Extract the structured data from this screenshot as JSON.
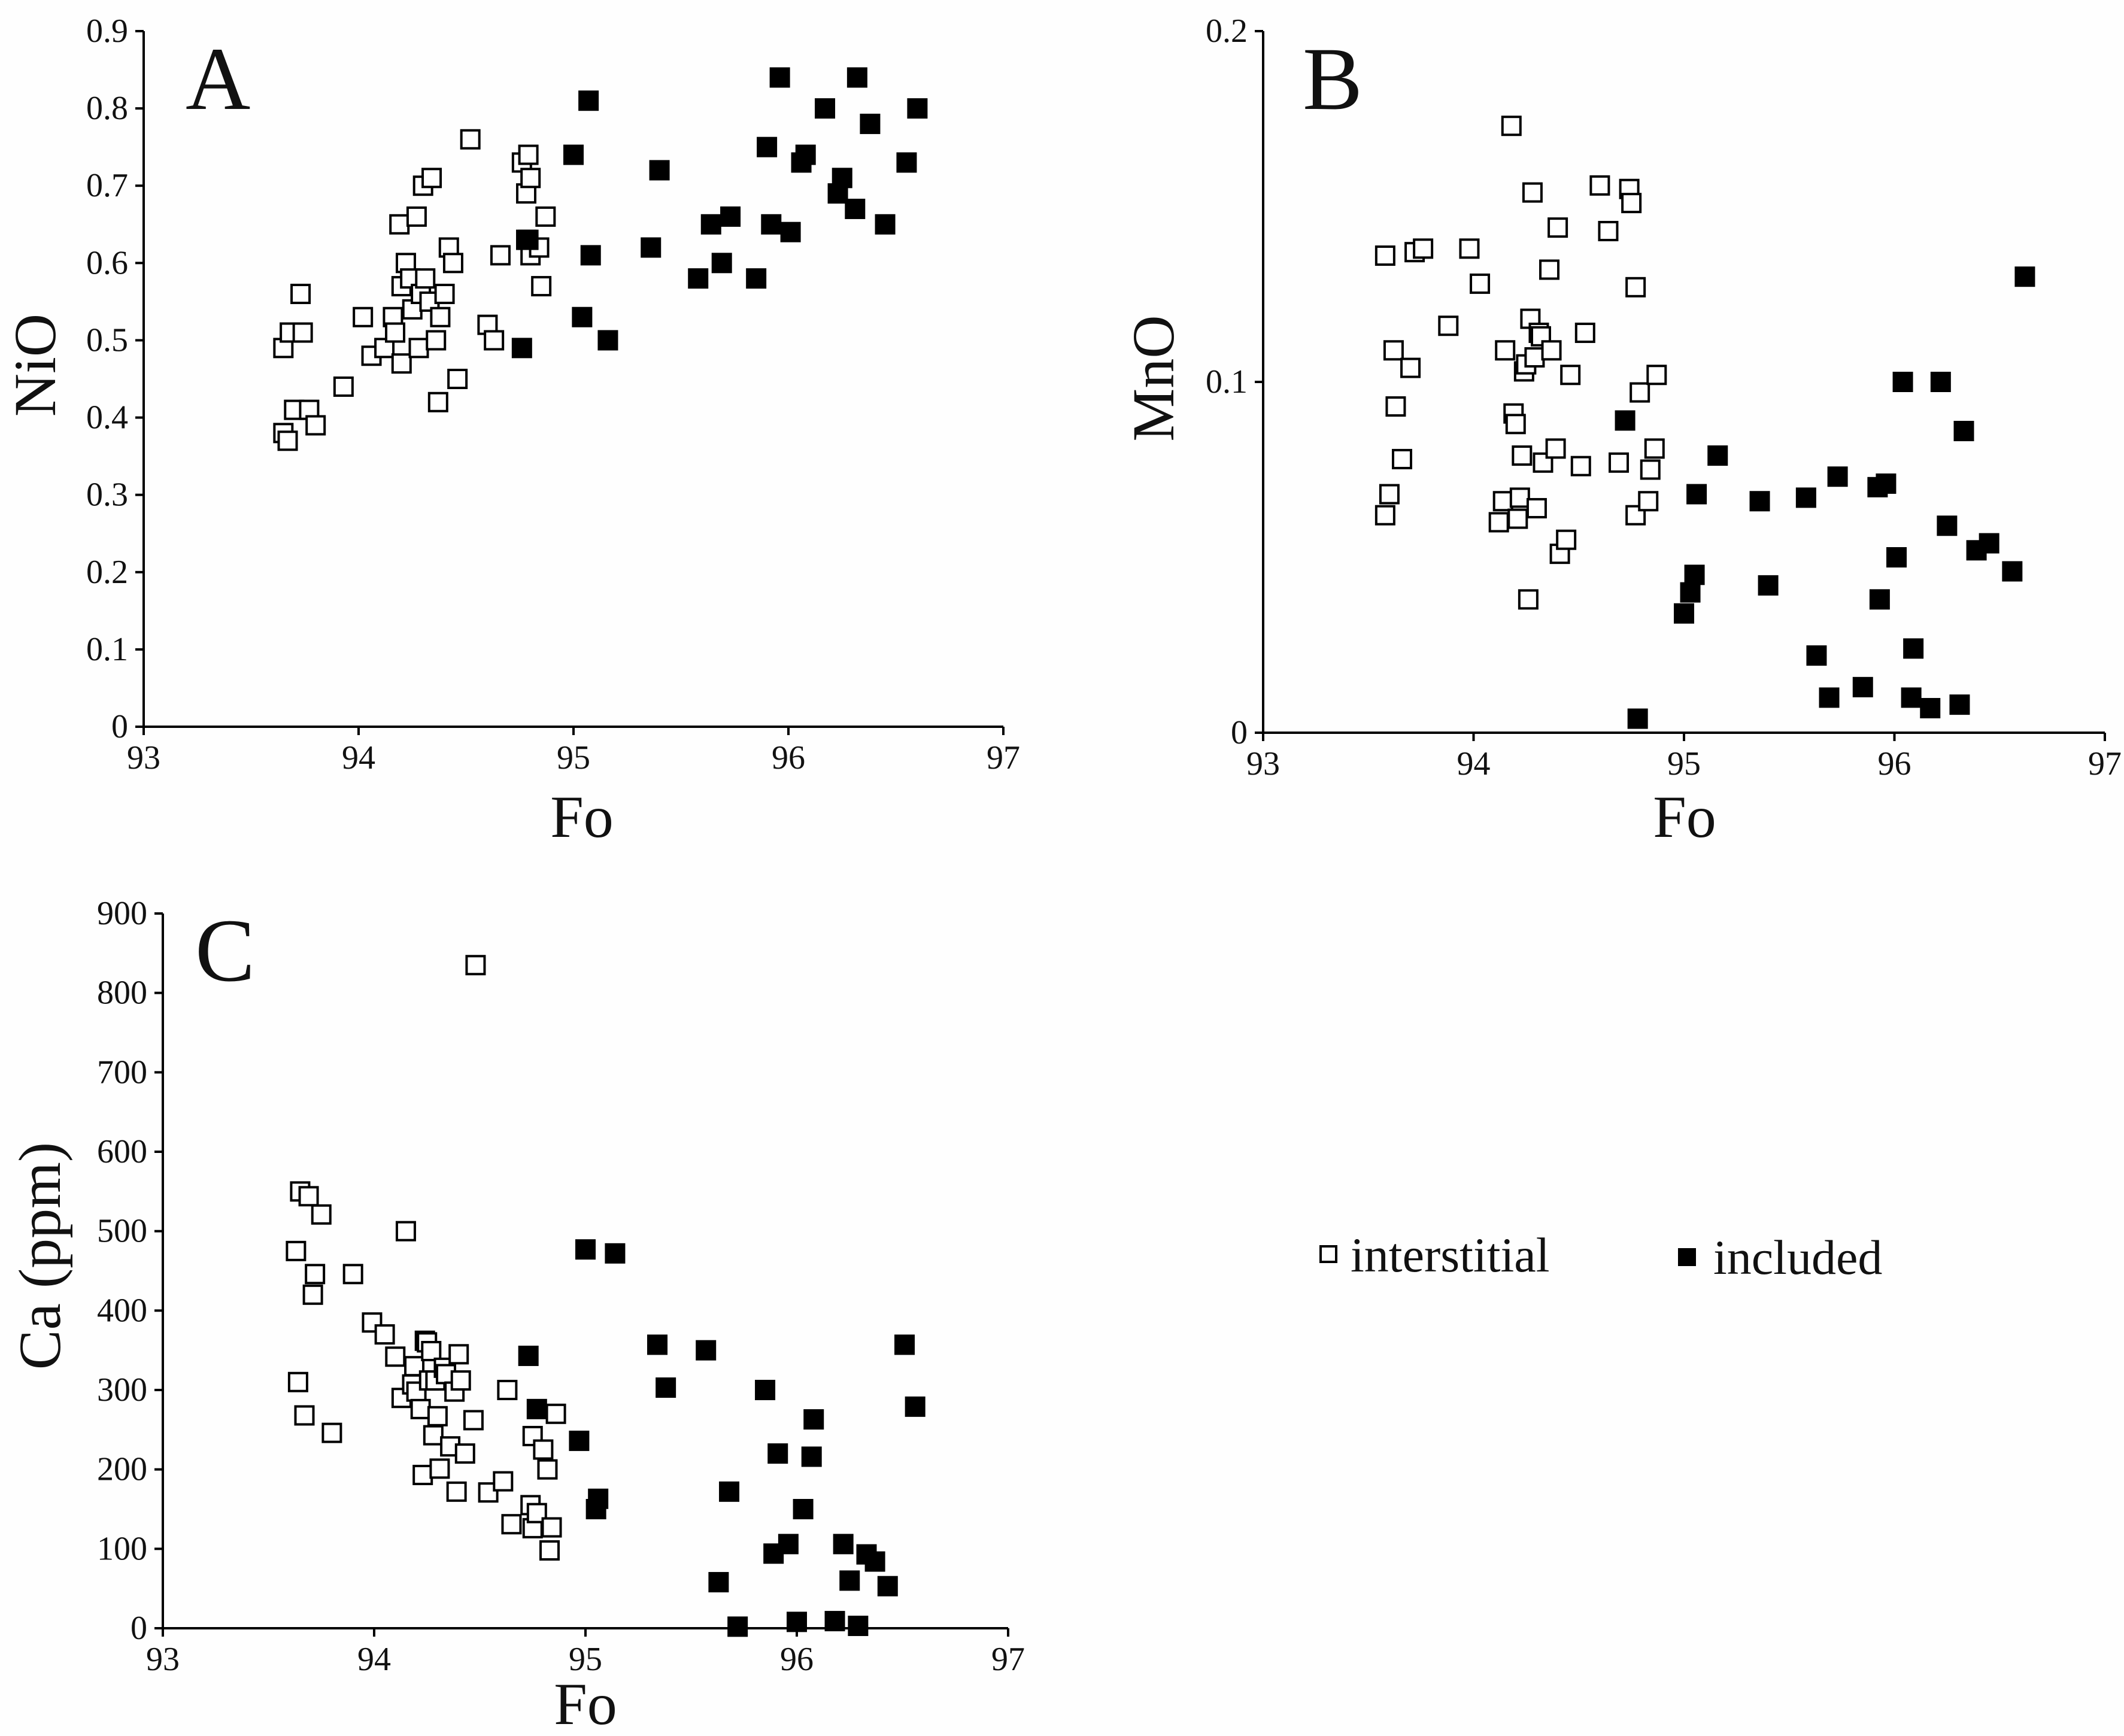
{
  "colors": {
    "background": "#fefefe",
    "ink": "#000000",
    "open_fill": "#ffffff"
  },
  "legend": {
    "items": [
      {
        "label": "interstitial",
        "marker": "open-square"
      },
      {
        "label": "included",
        "marker": "filled-square"
      }
    ]
  },
  "chart_data": [
    {
      "id": "A",
      "panel_label": "A",
      "type": "scatter",
      "xlabel": "Fo",
      "ylabel": "NiO",
      "xlim": [
        93,
        97
      ],
      "ylim": [
        0,
        0.9
      ],
      "xticks": [
        93,
        94,
        95,
        96,
        97
      ],
      "xtick_labels": [
        "93",
        "94",
        "95",
        "96",
        "97"
      ],
      "yticks": [
        0,
        0.1,
        0.2,
        0.3,
        0.4,
        0.5,
        0.6,
        0.7,
        0.8,
        0.9
      ],
      "ytick_labels": [
        "0",
        "0.1",
        "0.2",
        "0.3",
        "0.4",
        "0.5",
        "0.6",
        "0.7",
        "0.8",
        "0.9"
      ],
      "series": [
        {
          "name": "interstitial",
          "marker": "open-square",
          "points": [
            [
              93.65,
              0.49
            ],
            [
              93.65,
              0.38
            ],
            [
              93.67,
              0.37
            ],
            [
              93.68,
              0.51
            ],
            [
              93.7,
              0.41
            ],
            [
              93.73,
              0.56
            ],
            [
              93.74,
              0.51
            ],
            [
              93.77,
              0.41
            ],
            [
              93.8,
              0.39
            ],
            [
              93.93,
              0.44
            ],
            [
              94.02,
              0.53
            ],
            [
              94.06,
              0.48
            ],
            [
              94.12,
              0.49
            ],
            [
              94.16,
              0.53
            ],
            [
              94.17,
              0.51
            ],
            [
              94.19,
              0.65
            ],
            [
              94.2,
              0.57
            ],
            [
              94.2,
              0.47
            ],
            [
              94.22,
              0.6
            ],
            [
              94.24,
              0.58
            ],
            [
              94.25,
              0.54
            ],
            [
              94.27,
              0.66
            ],
            [
              94.28,
              0.49
            ],
            [
              94.29,
              0.56
            ],
            [
              94.3,
              0.7
            ],
            [
              94.31,
              0.58
            ],
            [
              94.33,
              0.55
            ],
            [
              94.34,
              0.71
            ],
            [
              94.36,
              0.5
            ],
            [
              94.37,
              0.42
            ],
            [
              94.38,
              0.53
            ],
            [
              94.4,
              0.56
            ],
            [
              94.42,
              0.62
            ],
            [
              94.44,
              0.6
            ],
            [
              94.46,
              0.45
            ],
            [
              94.52,
              0.76
            ],
            [
              94.6,
              0.52
            ],
            [
              94.63,
              0.5
            ],
            [
              94.66,
              0.61
            ],
            [
              94.76,
              0.73
            ],
            [
              94.78,
              0.69
            ],
            [
              94.78,
              0.63
            ],
            [
              94.79,
              0.74
            ],
            [
              94.8,
              0.71
            ],
            [
              94.8,
              0.61
            ],
            [
              94.84,
              0.62
            ],
            [
              94.85,
              0.57
            ],
            [
              94.87,
              0.66
            ]
          ]
        },
        {
          "name": "included",
          "marker": "filled-square",
          "points": [
            [
              94.76,
              0.49
            ],
            [
              94.79,
              0.63
            ],
            [
              95.0,
              0.74
            ],
            [
              95.04,
              0.53
            ],
            [
              95.07,
              0.81
            ],
            [
              95.08,
              0.61
            ],
            [
              95.16,
              0.5
            ],
            [
              95.36,
              0.62
            ],
            [
              95.4,
              0.72
            ],
            [
              95.58,
              0.58
            ],
            [
              95.64,
              0.65
            ],
            [
              95.69,
              0.6
            ],
            [
              95.73,
              0.66
            ],
            [
              95.85,
              0.58
            ],
            [
              95.9,
              0.75
            ],
            [
              95.92,
              0.65
            ],
            [
              95.96,
              0.84
            ],
            [
              96.01,
              0.64
            ],
            [
              96.06,
              0.73
            ],
            [
              96.08,
              0.74
            ],
            [
              96.17,
              0.8
            ],
            [
              96.23,
              0.69
            ],
            [
              96.25,
              0.71
            ],
            [
              96.31,
              0.67
            ],
            [
              96.32,
              0.84
            ],
            [
              96.38,
              0.78
            ],
            [
              96.45,
              0.65
            ],
            [
              96.55,
              0.73
            ],
            [
              96.6,
              0.8
            ]
          ]
        }
      ]
    },
    {
      "id": "B",
      "panel_label": "B",
      "type": "scatter",
      "xlabel": "Fo",
      "ylabel": "MnO",
      "xlim": [
        93,
        97
      ],
      "ylim": [
        0,
        0.2
      ],
      "xticks": [
        93,
        94,
        95,
        96,
        97
      ],
      "xtick_labels": [
        "93",
        "94",
        "95",
        "96",
        "97"
      ],
      "yticks": [
        0,
        0.1,
        0.2
      ],
      "ytick_labels": [
        "0",
        "0.1",
        "0.2"
      ],
      "series": [
        {
          "name": "interstitial",
          "marker": "open-square",
          "points": [
            [
              93.58,
              0.136
            ],
            [
              93.58,
              0.062
            ],
            [
              93.6,
              0.068
            ],
            [
              93.62,
              0.109
            ],
            [
              93.63,
              0.093
            ],
            [
              93.66,
              0.078
            ],
            [
              93.7,
              0.104
            ],
            [
              93.72,
              0.137
            ],
            [
              93.76,
              0.138
            ],
            [
              93.88,
              0.116
            ],
            [
              93.98,
              0.138
            ],
            [
              94.03,
              0.128
            ],
            [
              94.12,
              0.06
            ],
            [
              94.14,
              0.066
            ],
            [
              94.15,
              0.109
            ],
            [
              94.18,
              0.173
            ],
            [
              94.19,
              0.091
            ],
            [
              94.2,
              0.088
            ],
            [
              94.21,
              0.061
            ],
            [
              94.22,
              0.067
            ],
            [
              94.23,
              0.079
            ],
            [
              94.24,
              0.103
            ],
            [
              94.25,
              0.105
            ],
            [
              94.26,
              0.038
            ],
            [
              94.27,
              0.118
            ],
            [
              94.28,
              0.154
            ],
            [
              94.29,
              0.107
            ],
            [
              94.3,
              0.064
            ],
            [
              94.31,
              0.114
            ],
            [
              94.32,
              0.113
            ],
            [
              94.33,
              0.077
            ],
            [
              94.36,
              0.132
            ],
            [
              94.37,
              0.109
            ],
            [
              94.39,
              0.081
            ],
            [
              94.4,
              0.144
            ],
            [
              94.41,
              0.051
            ],
            [
              94.44,
              0.055
            ],
            [
              94.46,
              0.102
            ],
            [
              94.51,
              0.076
            ],
            [
              94.53,
              0.114
            ],
            [
              94.6,
              0.156
            ],
            [
              94.64,
              0.143
            ],
            [
              94.69,
              0.077
            ],
            [
              94.74,
              0.155
            ],
            [
              94.75,
              0.151
            ],
            [
              94.77,
              0.127
            ],
            [
              94.77,
              0.062
            ],
            [
              94.79,
              0.097
            ],
            [
              94.83,
              0.066
            ],
            [
              94.84,
              0.075
            ],
            [
              94.86,
              0.081
            ],
            [
              94.87,
              0.102
            ]
          ]
        },
        {
          "name": "included",
          "marker": "filled-square",
          "points": [
            [
              94.72,
              0.089
            ],
            [
              94.78,
              0.004
            ],
            [
              95.0,
              0.034
            ],
            [
              95.03,
              0.04
            ],
            [
              95.05,
              0.045
            ],
            [
              95.06,
              0.068
            ],
            [
              95.16,
              0.079
            ],
            [
              95.36,
              0.066
            ],
            [
              95.4,
              0.042
            ],
            [
              95.58,
              0.067
            ],
            [
              95.63,
              0.022
            ],
            [
              95.69,
              0.01
            ],
            [
              95.73,
              0.073
            ],
            [
              95.85,
              0.013
            ],
            [
              95.92,
              0.07
            ],
            [
              95.93,
              0.038
            ],
            [
              95.96,
              0.071
            ],
            [
              96.01,
              0.05
            ],
            [
              96.04,
              0.1
            ],
            [
              96.08,
              0.01
            ],
            [
              96.09,
              0.024
            ],
            [
              96.17,
              0.007
            ],
            [
              96.22,
              0.1
            ],
            [
              96.25,
              0.059
            ],
            [
              96.31,
              0.008
            ],
            [
              96.33,
              0.086
            ],
            [
              96.39,
              0.052
            ],
            [
              96.45,
              0.054
            ],
            [
              96.56,
              0.046
            ],
            [
              96.62,
              0.13
            ]
          ]
        }
      ]
    },
    {
      "id": "C",
      "panel_label": "C",
      "type": "scatter",
      "xlabel": "Fo",
      "ylabel": "Ca (ppm)",
      "xlim": [
        93,
        97
      ],
      "ylim": [
        0,
        900
      ],
      "xticks": [
        93,
        94,
        95,
        96,
        97
      ],
      "xtick_labels": [
        "93",
        "94",
        "95",
        "96",
        "97"
      ],
      "yticks": [
        0,
        100,
        200,
        300,
        400,
        500,
        600,
        700,
        800,
        900
      ],
      "ytick_labels": [
        "0",
        "100",
        "200",
        "300",
        "400",
        "500",
        "600",
        "700",
        "800",
        "900"
      ],
      "series": [
        {
          "name": "interstitial",
          "marker": "open-square",
          "points": [
            [
              93.63,
              475
            ],
            [
              93.64,
              310
            ],
            [
              93.65,
              550
            ],
            [
              93.67,
              268
            ],
            [
              93.69,
              544
            ],
            [
              93.71,
              420
            ],
            [
              93.72,
              446
            ],
            [
              93.75,
              521
            ],
            [
              93.8,
              246
            ],
            [
              93.9,
              446
            ],
            [
              93.99,
              385
            ],
            [
              94.05,
              370
            ],
            [
              94.1,
              342
            ],
            [
              94.13,
              290
            ],
            [
              94.15,
              500
            ],
            [
              94.18,
              307
            ],
            [
              94.19,
              330
            ],
            [
              94.2,
              298
            ],
            [
              94.22,
              276
            ],
            [
              94.23,
              193
            ],
            [
              94.24,
              362
            ],
            [
              94.25,
              360
            ],
            [
              94.26,
              312
            ],
            [
              94.27,
              349
            ],
            [
              94.28,
              243
            ],
            [
              94.29,
              312
            ],
            [
              94.3,
              267
            ],
            [
              94.31,
              201
            ],
            [
              94.33,
              328
            ],
            [
              94.34,
              320
            ],
            [
              94.36,
              229
            ],
            [
              94.38,
              298
            ],
            [
              94.39,
              172
            ],
            [
              94.4,
              345
            ],
            [
              94.41,
              312
            ],
            [
              94.43,
              220
            ],
            [
              94.47,
              262
            ],
            [
              94.48,
              835
            ],
            [
              94.54,
              171
            ],
            [
              94.61,
              185
            ],
            [
              94.63,
              300
            ],
            [
              94.65,
              131
            ],
            [
              94.74,
              155
            ],
            [
              94.75,
              126
            ],
            [
              94.75,
              242
            ],
            [
              94.77,
              145
            ],
            [
              94.8,
              225
            ],
            [
              94.82,
              200
            ],
            [
              94.83,
              98
            ],
            [
              94.84,
              127
            ],
            [
              94.86,
              270
            ]
          ]
        },
        {
          "name": "included",
          "marker": "filled-square",
          "points": [
            [
              94.73,
              343
            ],
            [
              94.77,
              276
            ],
            [
              94.97,
              236
            ],
            [
              95.0,
              477
            ],
            [
              95.05,
              150
            ],
            [
              95.06,
              163
            ],
            [
              95.14,
              472
            ],
            [
              95.34,
              357
            ],
            [
              95.38,
              303
            ],
            [
              95.57,
              350
            ],
            [
              95.63,
              58
            ],
            [
              95.68,
              172
            ],
            [
              95.72,
              2
            ],
            [
              95.85,
              300
            ],
            [
              95.89,
              94
            ],
            [
              95.91,
              220
            ],
            [
              95.96,
              106
            ],
            [
              96.0,
              8
            ],
            [
              96.03,
              150
            ],
            [
              96.07,
              216
            ],
            [
              96.08,
              263
            ],
            [
              96.18,
              9
            ],
            [
              96.22,
              106
            ],
            [
              96.25,
              60
            ],
            [
              96.29,
              3
            ],
            [
              96.33,
              93
            ],
            [
              96.37,
              84
            ],
            [
              96.43,
              53
            ],
            [
              96.51,
              357
            ],
            [
              96.56,
              279
            ]
          ]
        }
      ]
    }
  ]
}
